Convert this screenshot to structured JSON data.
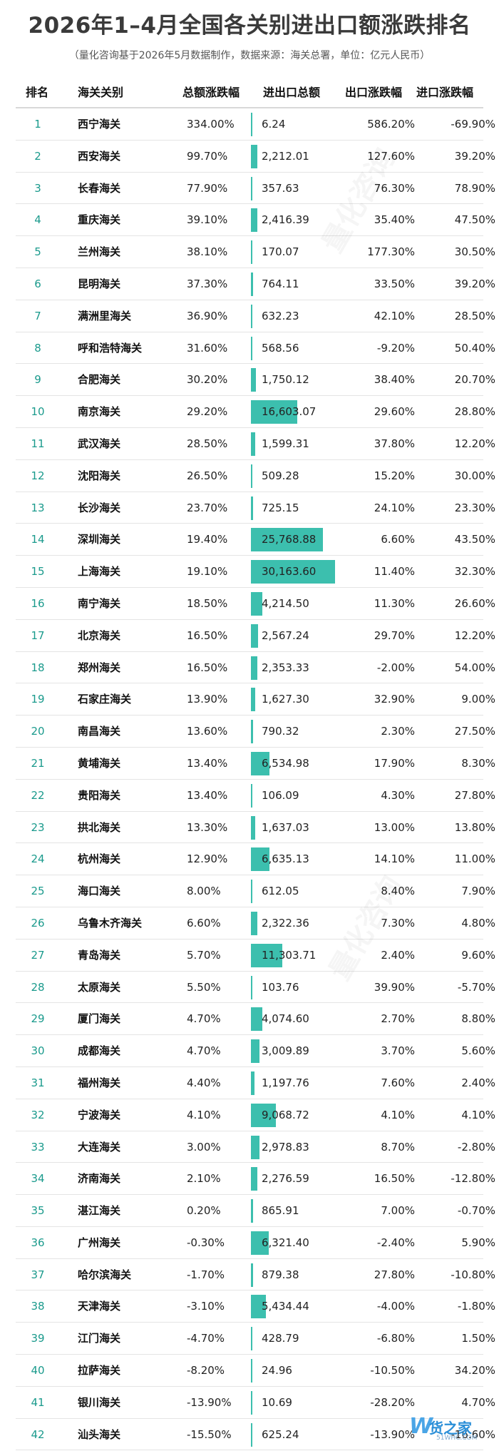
{
  "title": "2026年1–4月全国各关别进出口额涨跌排名",
  "subtitle": "（量化咨询基于2026年5月数据制作，数据来源：海关总署，单位：亿元人民币）",
  "headers": {
    "rank": "排名",
    "customs": "海关关别",
    "growth": "总额涨跌幅",
    "total": "进出口总额",
    "export": "出口涨跌幅",
    "import": "进口涨跌幅"
  },
  "colors": {
    "bar": "#3cbfae",
    "rank": "#1a9a8c"
  },
  "rows": [
    {
      "rank": "1",
      "name": "西宁海关",
      "growth": "334.00%",
      "total": "6.24",
      "total_value": 6.24,
      "export": "586.20%",
      "import": "-69.90%"
    },
    {
      "rank": "2",
      "name": "西安海关",
      "growth": "99.70%",
      "total": "2,212.01",
      "total_value": 2212.01,
      "export": "127.60%",
      "import": "39.20%"
    },
    {
      "rank": "3",
      "name": "长春海关",
      "growth": "77.90%",
      "total": "357.63",
      "total_value": 357.63,
      "export": "76.30%",
      "import": "78.90%"
    },
    {
      "rank": "4",
      "name": "重庆海关",
      "growth": "39.10%",
      "total": "2,416.39",
      "total_value": 2416.39,
      "export": "35.40%",
      "import": "47.50%"
    },
    {
      "rank": "5",
      "name": "兰州海关",
      "growth": "38.10%",
      "total": "170.07",
      "total_value": 170.07,
      "export": "177.30%",
      "import": "30.50%"
    },
    {
      "rank": "6",
      "name": "昆明海关",
      "growth": "37.30%",
      "total": "764.11",
      "total_value": 764.11,
      "export": "33.50%",
      "import": "39.20%"
    },
    {
      "rank": "7",
      "name": "满洲里海关",
      "growth": "36.90%",
      "total": "632.23",
      "total_value": 632.23,
      "export": "42.10%",
      "import": "28.50%"
    },
    {
      "rank": "8",
      "name": "呼和浩特海关",
      "growth": "31.60%",
      "total": "568.56",
      "total_value": 568.56,
      "export": "-9.20%",
      "import": "50.40%"
    },
    {
      "rank": "9",
      "name": "合肥海关",
      "growth": "30.20%",
      "total": "1,750.12",
      "total_value": 1750.12,
      "export": "38.40%",
      "import": "20.70%"
    },
    {
      "rank": "10",
      "name": "南京海关",
      "growth": "29.20%",
      "total": "16,603.07",
      "total_value": 16603.07,
      "export": "29.60%",
      "import": "28.80%"
    },
    {
      "rank": "11",
      "name": "武汉海关",
      "growth": "28.50%",
      "total": "1,599.31",
      "total_value": 1599.31,
      "export": "37.80%",
      "import": "12.20%"
    },
    {
      "rank": "12",
      "name": "沈阳海关",
      "growth": "26.50%",
      "total": "509.28",
      "total_value": 509.28,
      "export": "15.20%",
      "import": "30.00%"
    },
    {
      "rank": "13",
      "name": "长沙海关",
      "growth": "23.70%",
      "total": "725.15",
      "total_value": 725.15,
      "export": "24.10%",
      "import": "23.30%"
    },
    {
      "rank": "14",
      "name": "深圳海关",
      "growth": "19.40%",
      "total": "25,768.88",
      "total_value": 25768.88,
      "export": "6.60%",
      "import": "43.50%"
    },
    {
      "rank": "15",
      "name": "上海海关",
      "growth": "19.10%",
      "total": "30,163.60",
      "total_value": 30163.6,
      "export": "11.40%",
      "import": "32.30%"
    },
    {
      "rank": "16",
      "name": "南宁海关",
      "growth": "18.50%",
      "total": "4,214.50",
      "total_value": 4214.5,
      "export": "11.30%",
      "import": "26.60%"
    },
    {
      "rank": "17",
      "name": "北京海关",
      "growth": "16.50%",
      "total": "2,567.24",
      "total_value": 2567.24,
      "export": "29.70%",
      "import": "12.20%"
    },
    {
      "rank": "18",
      "name": "郑州海关",
      "growth": "16.50%",
      "total": "2,353.33",
      "total_value": 2353.33,
      "export": "-2.00%",
      "import": "54.00%"
    },
    {
      "rank": "19",
      "name": "石家庄海关",
      "growth": "13.90%",
      "total": "1,627.30",
      "total_value": 1627.3,
      "export": "32.90%",
      "import": "9.00%"
    },
    {
      "rank": "20",
      "name": "南昌海关",
      "growth": "13.60%",
      "total": "790.32",
      "total_value": 790.32,
      "export": "2.30%",
      "import": "27.50%"
    },
    {
      "rank": "21",
      "name": "黄埔海关",
      "growth": "13.40%",
      "total": "6,534.98",
      "total_value": 6534.98,
      "export": "17.90%",
      "import": "8.30%"
    },
    {
      "rank": "22",
      "name": "贵阳海关",
      "growth": "13.40%",
      "total": "106.09",
      "total_value": 106.09,
      "export": "4.30%",
      "import": "27.80%"
    },
    {
      "rank": "23",
      "name": "拱北海关",
      "growth": "13.30%",
      "total": "1,637.03",
      "total_value": 1637.03,
      "export": "13.00%",
      "import": "13.80%"
    },
    {
      "rank": "24",
      "name": "杭州海关",
      "growth": "12.90%",
      "total": "6,635.13",
      "total_value": 6635.13,
      "export": "14.10%",
      "import": "11.00%"
    },
    {
      "rank": "25",
      "name": "海口海关",
      "growth": "8.00%",
      "total": "612.05",
      "total_value": 612.05,
      "export": "8.40%",
      "import": "7.90%"
    },
    {
      "rank": "26",
      "name": "乌鲁木齐海关",
      "growth": "6.60%",
      "total": "2,322.36",
      "total_value": 2322.36,
      "export": "7.30%",
      "import": "4.80%"
    },
    {
      "rank": "27",
      "name": "青岛海关",
      "growth": "5.70%",
      "total": "11,303.71",
      "total_value": 11303.71,
      "export": "2.40%",
      "import": "9.60%"
    },
    {
      "rank": "28",
      "name": "太原海关",
      "growth": "5.50%",
      "total": "103.76",
      "total_value": 103.76,
      "export": "39.90%",
      "import": "-5.70%"
    },
    {
      "rank": "29",
      "name": "厦门海关",
      "growth": "4.70%",
      "total": "4,074.60",
      "total_value": 4074.6,
      "export": "2.70%",
      "import": "8.80%"
    },
    {
      "rank": "30",
      "name": "成都海关",
      "growth": "4.70%",
      "total": "3,009.89",
      "total_value": 3009.89,
      "export": "3.70%",
      "import": "5.60%"
    },
    {
      "rank": "31",
      "name": "福州海关",
      "growth": "4.40%",
      "total": "1,197.76",
      "total_value": 1197.76,
      "export": "7.60%",
      "import": "2.40%"
    },
    {
      "rank": "32",
      "name": "宁波海关",
      "growth": "4.10%",
      "total": "9,068.72",
      "total_value": 9068.72,
      "export": "4.10%",
      "import": "4.10%"
    },
    {
      "rank": "33",
      "name": "大连海关",
      "growth": "3.00%",
      "total": "2,978.83",
      "total_value": 2978.83,
      "export": "8.70%",
      "import": "-2.80%"
    },
    {
      "rank": "34",
      "name": "济南海关",
      "growth": "2.10%",
      "total": "2,276.59",
      "total_value": 2276.59,
      "export": "16.50%",
      "import": "-12.80%"
    },
    {
      "rank": "35",
      "name": "湛江海关",
      "growth": "0.20%",
      "total": "865.91",
      "total_value": 865.91,
      "export": "7.00%",
      "import": "-0.70%"
    },
    {
      "rank": "36",
      "name": "广州海关",
      "growth": "-0.30%",
      "total": "6,321.40",
      "total_value": 6321.4,
      "export": "-2.40%",
      "import": "5.90%"
    },
    {
      "rank": "37",
      "name": "哈尔滨海关",
      "growth": "-1.70%",
      "total": "879.38",
      "total_value": 879.38,
      "export": "27.80%",
      "import": "-10.80%"
    },
    {
      "rank": "38",
      "name": "天津海关",
      "growth": "-3.10%",
      "total": "5,434.44",
      "total_value": 5434.44,
      "export": "-4.00%",
      "import": "-1.80%"
    },
    {
      "rank": "39",
      "name": "江门海关",
      "growth": "-4.70%",
      "total": "428.79",
      "total_value": 428.79,
      "export": "-6.80%",
      "import": "1.50%"
    },
    {
      "rank": "40",
      "name": "拉萨海关",
      "growth": "-8.20%",
      "total": "24.96",
      "total_value": 24.96,
      "export": "-10.50%",
      "import": "34.20%"
    },
    {
      "rank": "41",
      "name": "银川海关",
      "growth": "-13.90%",
      "total": "10.69",
      "total_value": 10.69,
      "export": "-28.20%",
      "import": "4.70%"
    },
    {
      "rank": "42",
      "name": "汕头海关",
      "growth": "-15.50%",
      "total": "625.24",
      "total_value": 625.24,
      "export": "-13.90%",
      "import": "-16.60%"
    }
  ],
  "watermark_text": "量化咨询",
  "logo": {
    "main": "货之家",
    "sub": "51WHC.COM",
    "mark": "W"
  }
}
